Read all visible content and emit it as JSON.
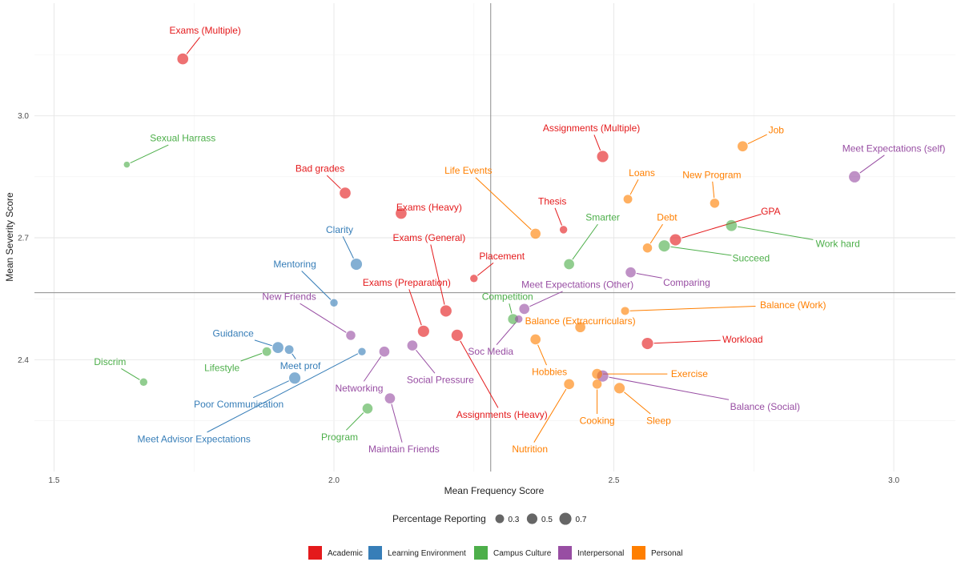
{
  "chart_data": {
    "type": "scatter",
    "xlabel": "Mean Frequency Score",
    "ylabel": "Mean Severity Score",
    "xlim": [
      1.465,
      3.11
    ],
    "ylim": [
      2.125,
      3.277
    ],
    "xticks": [
      1.5,
      2.0,
      2.5,
      3.0
    ],
    "yticks": [
      2.4,
      2.7,
      3.0
    ],
    "xtick_labels": [
      "1.5",
      "2.0",
      "2.5",
      "3.0"
    ],
    "ytick_labels": [
      "2.4",
      "2.7",
      "3.0"
    ],
    "reference_lines": {
      "x": 2.28,
      "y": 2.565
    },
    "colors": {
      "Academic": "#e41a1c",
      "Learning Environment": "#377eb8",
      "Campus Culture": "#4daf4a",
      "Interpersonal": "#984ea3",
      "Personal": "#ff7f00"
    },
    "size_legend": {
      "title": "Percentage Reporting",
      "entries": [
        {
          "label": "0.3",
          "value": 0.3
        },
        {
          "label": "0.5",
          "value": 0.5
        },
        {
          "label": "0.7",
          "value": 0.7
        }
      ]
    },
    "category_legend": [
      "Academic",
      "Learning Environment",
      "Campus Culture",
      "Interpersonal",
      "Personal"
    ],
    "points": [
      {
        "label": "Exams (Multiple)",
        "category": "Academic",
        "x": 1.73,
        "y": 3.14,
        "size": 0.55,
        "lx": 1.77,
        "ly": 3.21
      },
      {
        "label": "Bad grades",
        "category": "Academic",
        "x": 2.02,
        "y": 2.81,
        "size": 0.55,
        "lx": 1.975,
        "ly": 2.87
      },
      {
        "label": "Exams (Heavy)",
        "category": "Academic",
        "x": 2.12,
        "y": 2.76,
        "size": 0.55,
        "lx": 2.17,
        "ly": 2.775
      },
      {
        "label": "Exams (General)",
        "category": "Academic",
        "x": 2.2,
        "y": 2.52,
        "size": 0.6,
        "lx": 2.17,
        "ly": 2.7
      },
      {
        "label": "Exams (Preparation)",
        "category": "Academic",
        "x": 2.16,
        "y": 2.47,
        "size": 0.6,
        "lx": 2.13,
        "ly": 2.59
      },
      {
        "label": "Assignments (Heavy)",
        "category": "Academic",
        "x": 2.22,
        "y": 2.46,
        "size": 0.6,
        "lx": 2.3,
        "ly": 2.265
      },
      {
        "label": "Assignments (Multiple)",
        "category": "Academic",
        "x": 2.48,
        "y": 2.9,
        "size": 0.6,
        "lx": 2.46,
        "ly": 2.97
      },
      {
        "label": "Thesis",
        "category": "Academic",
        "x": 2.41,
        "y": 2.72,
        "size": 0.2,
        "lx": 2.39,
        "ly": 2.79
      },
      {
        "label": "Placement",
        "category": "Academic",
        "x": 2.25,
        "y": 2.6,
        "size": 0.2,
        "lx": 2.3,
        "ly": 2.655
      },
      {
        "label": "GPA",
        "category": "Academic",
        "x": 2.61,
        "y": 2.695,
        "size": 0.6,
        "lx": 2.78,
        "ly": 2.765
      },
      {
        "label": "Workload",
        "category": "Academic",
        "x": 2.56,
        "y": 2.44,
        "size": 0.6,
        "lx": 2.73,
        "ly": 2.45
      },
      {
        "label": "Clarity",
        "category": "Learning Environment",
        "x": 2.04,
        "y": 2.635,
        "size": 0.6,
        "lx": 2.01,
        "ly": 2.72
      },
      {
        "label": "Mentoring",
        "category": "Learning Environment",
        "x": 2.0,
        "y": 2.54,
        "size": 0.2,
        "lx": 1.93,
        "ly": 2.635
      },
      {
        "label": "Guidance",
        "category": "Learning Environment",
        "x": 1.9,
        "y": 2.43,
        "size": 0.55,
        "lx": 1.82,
        "ly": 2.465
      },
      {
        "label": "Meet prof",
        "category": "Learning Environment",
        "x": 1.92,
        "y": 2.425,
        "size": 0.3,
        "lx": 1.94,
        "ly": 2.385
      },
      {
        "label": "Poor Communication",
        "category": "Learning Environment",
        "x": 1.93,
        "y": 2.355,
        "size": 0.6,
        "lx": 1.83,
        "ly": 2.29
      },
      {
        "label": "Meet Advisor Expectations",
        "category": "Learning Environment",
        "x": 2.05,
        "y": 2.42,
        "size": 0.2,
        "lx": 1.75,
        "ly": 2.205
      },
      {
        "label": "Sexual Harrass",
        "category": "Campus Culture",
        "x": 1.63,
        "y": 2.88,
        "size": 0.1,
        "lx": 1.73,
        "ly": 2.945
      },
      {
        "label": "Discrim",
        "category": "Campus Culture",
        "x": 1.66,
        "y": 2.345,
        "size": 0.2,
        "lx": 1.6,
        "ly": 2.395
      },
      {
        "label": "Lifestyle",
        "category": "Campus Culture",
        "x": 1.88,
        "y": 2.42,
        "size": 0.3,
        "lx": 1.8,
        "ly": 2.38
      },
      {
        "label": "Program",
        "category": "Campus Culture",
        "x": 2.06,
        "y": 2.28,
        "size": 0.45,
        "lx": 2.01,
        "ly": 2.21
      },
      {
        "label": "Competition",
        "category": "Campus Culture",
        "x": 2.32,
        "y": 2.5,
        "size": 0.45,
        "lx": 2.31,
        "ly": 2.555
      },
      {
        "label": "Smarter",
        "category": "Campus Culture",
        "x": 2.42,
        "y": 2.635,
        "size": 0.45,
        "lx": 2.48,
        "ly": 2.75
      },
      {
        "label": "Succeed",
        "category": "Campus Culture",
        "x": 2.59,
        "y": 2.68,
        "size": 0.6,
        "lx": 2.745,
        "ly": 2.65
      },
      {
        "label": "Work hard",
        "category": "Campus Culture",
        "x": 2.71,
        "y": 2.73,
        "size": 0.55,
        "lx": 2.9,
        "ly": 2.685
      },
      {
        "label": "New Friends",
        "category": "Interpersonal",
        "x": 2.03,
        "y": 2.46,
        "size": 0.35,
        "lx": 1.92,
        "ly": 2.555
      },
      {
        "label": "Networking",
        "category": "Interpersonal",
        "x": 2.09,
        "y": 2.42,
        "size": 0.45,
        "lx": 2.045,
        "ly": 2.33
      },
      {
        "label": "Social Pressure",
        "category": "Interpersonal",
        "x": 2.14,
        "y": 2.435,
        "size": 0.45,
        "lx": 2.19,
        "ly": 2.35
      },
      {
        "label": "Maintain Friends",
        "category": "Interpersonal",
        "x": 2.1,
        "y": 2.305,
        "size": 0.45,
        "lx": 2.125,
        "ly": 2.18
      },
      {
        "label": "Soc Media",
        "category": "Interpersonal",
        "x": 2.33,
        "y": 2.5,
        "size": 0.2,
        "lx": 2.28,
        "ly": 2.42
      },
      {
        "label": "Meet Expectations (Other)",
        "category": "Interpersonal",
        "x": 2.34,
        "y": 2.525,
        "size": 0.45,
        "lx": 2.435,
        "ly": 2.585
      },
      {
        "label": "Comparing",
        "category": "Interpersonal",
        "x": 2.53,
        "y": 2.615,
        "size": 0.45,
        "lx": 2.63,
        "ly": 2.59
      },
      {
        "label": "Meet Expectations (self)",
        "category": "Interpersonal",
        "x": 2.93,
        "y": 2.85,
        "size": 0.6,
        "lx": 3.0,
        "ly": 2.92
      },
      {
        "label": "Balance (Social)",
        "category": "Interpersonal",
        "x": 2.48,
        "y": 2.36,
        "size": 0.6,
        "lx": 2.77,
        "ly": 2.285
      },
      {
        "label": "Life Events",
        "category": "Personal",
        "x": 2.36,
        "y": 2.71,
        "size": 0.45,
        "lx": 2.24,
        "ly": 2.865
      },
      {
        "label": "Job",
        "category": "Personal",
        "x": 2.73,
        "y": 2.925,
        "size": 0.45,
        "lx": 2.79,
        "ly": 2.965
      },
      {
        "label": "Loans",
        "category": "Personal",
        "x": 2.525,
        "y": 2.795,
        "size": 0.3,
        "lx": 2.55,
        "ly": 2.86
      },
      {
        "label": "New Program",
        "category": "Personal",
        "x": 2.68,
        "y": 2.785,
        "size": 0.35,
        "lx": 2.675,
        "ly": 2.855
      },
      {
        "label": "Debt",
        "category": "Personal",
        "x": 2.56,
        "y": 2.675,
        "size": 0.35,
        "lx": 2.595,
        "ly": 2.75
      },
      {
        "label": "Balance (Work)",
        "category": "Personal",
        "x": 2.52,
        "y": 2.52,
        "size": 0.25,
        "lx": 2.82,
        "ly": 2.535
      },
      {
        "label": "Balance (Extracurriculars)",
        "category": "Personal",
        "x": 2.44,
        "y": 2.48,
        "size": 0.45,
        "lx": 2.44,
        "ly": 2.495
      },
      {
        "label": "Hobbies",
        "category": "Personal",
        "x": 2.36,
        "y": 2.45,
        "size": 0.45,
        "lx": 2.385,
        "ly": 2.37
      },
      {
        "label": "Nutrition",
        "category": "Personal",
        "x": 2.42,
        "y": 2.34,
        "size": 0.45,
        "lx": 2.35,
        "ly": 2.18
      },
      {
        "label": "Cooking",
        "category": "Personal",
        "x": 2.47,
        "y": 2.34,
        "size": 0.35,
        "lx": 2.47,
        "ly": 2.25
      },
      {
        "label": "Exercise",
        "category": "Personal",
        "x": 2.47,
        "y": 2.365,
        "size": 0.45,
        "lx": 2.635,
        "ly": 2.365
      },
      {
        "label": "Sleep",
        "category": "Personal",
        "x": 2.51,
        "y": 2.33,
        "size": 0.5,
        "lx": 2.58,
        "ly": 2.25
      }
    ]
  }
}
